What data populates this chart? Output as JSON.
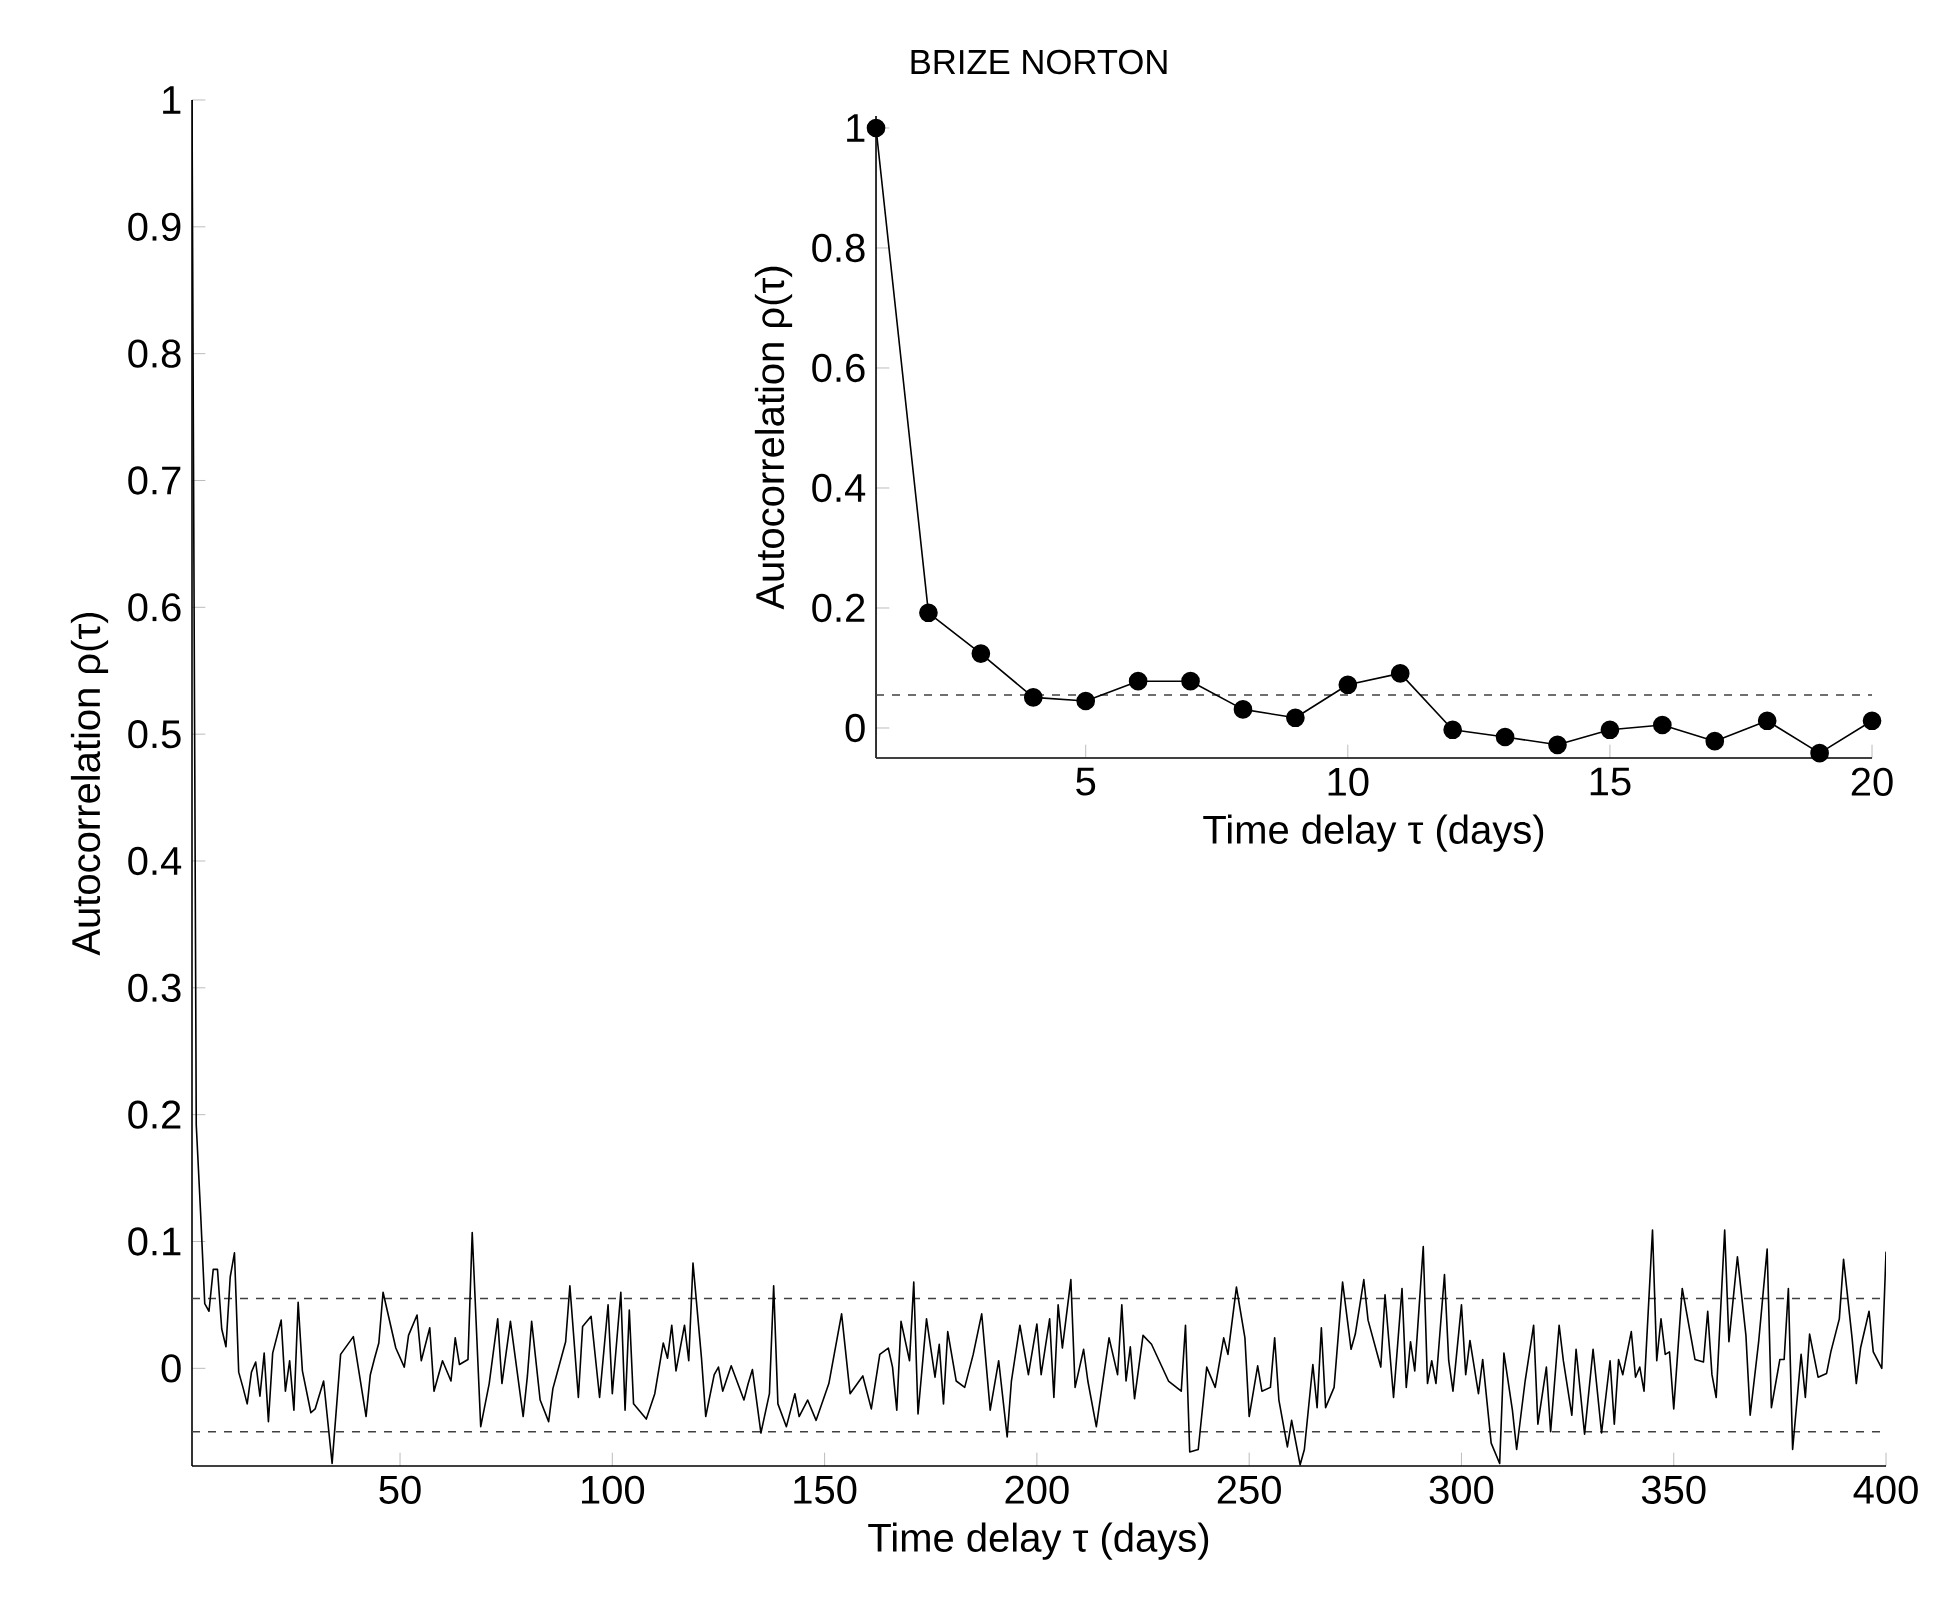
{
  "chart_data": [
    {
      "type": "line",
      "title": "BRIZE NORTON",
      "xlabel": "Time delay τ (days)",
      "ylabel": "Autocorrelation ρ(τ)",
      "color": "#000000",
      "marker": "none",
      "line_style": "solid",
      "xlim": [
        1,
        400
      ],
      "xticks": [
        50,
        100,
        150,
        200,
        250,
        300,
        350,
        400
      ],
      "ylim": [
        -0.077,
        1
      ],
      "yticks": [
        0,
        0.1,
        0.2,
        0.3,
        0.4,
        0.5,
        0.6,
        0.7,
        0.8,
        0.9,
        1
      ],
      "ref_lines": [
        {
          "axis": "y",
          "value": 0.055,
          "color": "#404040",
          "line_style": "dashed"
        },
        {
          "axis": "y",
          "value": -0.05,
          "color": "#404040",
          "line_style": "dashed"
        }
      ],
      "x": [
        1,
        2,
        3,
        4,
        5,
        6,
        7,
        8,
        9,
        10,
        11,
        12,
        13,
        14,
        15,
        16,
        17,
        18,
        19,
        20,
        22,
        23,
        24,
        25,
        26,
        27,
        29,
        30,
        32,
        34,
        36,
        39,
        42,
        43,
        44,
        45,
        46,
        49,
        51,
        52,
        54,
        55,
        57,
        58,
        60,
        62,
        63,
        64,
        66,
        67,
        69,
        71,
        73,
        74,
        76,
        79,
        80,
        81,
        83,
        85,
        86,
        89,
        90,
        92,
        93,
        95,
        97,
        99,
        100,
        102,
        103,
        104,
        105,
        108,
        110,
        112,
        113,
        114,
        115,
        117,
        118,
        119,
        121,
        122,
        124,
        125,
        126,
        128,
        131,
        132,
        133,
        135,
        137,
        138,
        139,
        141,
        143,
        144,
        146,
        148,
        151,
        154,
        156,
        159,
        161,
        163,
        165,
        166,
        167,
        168,
        170,
        171,
        172,
        174,
        176,
        177,
        178,
        179,
        181,
        183,
        185,
        187,
        189,
        191,
        193,
        194,
        196,
        198,
        200,
        201,
        203,
        204,
        205,
        206,
        208,
        209,
        211,
        212,
        214,
        217,
        219,
        220,
        221,
        222,
        223,
        225,
        227,
        231,
        234,
        235,
        236,
        238,
        240,
        242,
        244,
        245,
        247,
        249,
        250,
        252,
        253,
        255,
        256,
        257,
        259,
        260,
        262,
        263,
        265,
        266,
        267,
        268,
        270,
        272,
        274,
        275,
        277,
        278,
        281,
        282,
        284,
        286,
        287,
        288,
        289,
        291,
        292,
        293,
        294,
        296,
        297,
        298,
        300,
        301,
        302,
        304,
        305,
        307,
        309,
        310,
        312,
        313,
        315,
        317,
        318,
        320,
        321,
        323,
        324,
        326,
        327,
        329,
        331,
        333,
        335,
        336,
        337,
        338,
        340,
        341,
        342,
        343,
        345,
        346,
        347,
        348,
        349,
        350,
        352,
        355,
        357,
        358,
        359,
        360,
        362,
        363,
        365,
        367,
        368,
        370,
        372,
        373,
        375,
        376,
        377,
        378,
        380,
        381,
        382,
        384,
        386,
        387,
        389,
        390,
        392,
        393,
        394,
        396,
        397,
        399,
        400
      ],
      "values": [
        1.0,
        0.192,
        0.124,
        0.051,
        0.045,
        0.078,
        0.078,
        0.031,
        0.017,
        0.072,
        0.091,
        -0.003,
        -0.015,
        -0.028,
        -0.003,
        0.005,
        -0.022,
        0.012,
        -0.042,
        0.012,
        0.038,
        -0.018,
        0.006,
        -0.033,
        0.052,
        -0.002,
        -0.035,
        -0.032,
        -0.01,
        -0.075,
        0.011,
        0.025,
        -0.038,
        -0.005,
        0.008,
        0.02,
        0.06,
        0.016,
        0.001,
        0.026,
        0.042,
        0.006,
        0.032,
        -0.018,
        0.006,
        -0.01,
        0.024,
        0.003,
        0.007,
        0.107,
        -0.046,
        -0.012,
        0.039,
        -0.012,
        0.037,
        -0.038,
        -0.006,
        0.037,
        -0.025,
        -0.042,
        -0.016,
        0.021,
        0.065,
        -0.023,
        0.033,
        0.041,
        -0.023,
        0.05,
        -0.02,
        0.06,
        -0.033,
        0.046,
        -0.028,
        -0.04,
        -0.02,
        0.02,
        0.008,
        0.034,
        -0.002,
        0.034,
        0.006,
        0.083,
        0.008,
        -0.038,
        -0.005,
        0.001,
        -0.018,
        0.002,
        -0.025,
        -0.012,
        -0.001,
        -0.051,
        -0.02,
        0.065,
        -0.028,
        -0.046,
        -0.02,
        -0.038,
        -0.025,
        -0.041,
        -0.012,
        0.043,
        -0.02,
        -0.006,
        -0.032,
        0.011,
        0.016,
        0.001,
        -0.033,
        0.037,
        0.006,
        0.068,
        -0.036,
        0.039,
        -0.007,
        0.019,
        -0.028,
        0.029,
        -0.01,
        -0.015,
        0.011,
        0.043,
        -0.033,
        0.006,
        -0.054,
        -0.01,
        0.034,
        -0.005,
        0.035,
        -0.005,
        0.039,
        -0.023,
        0.05,
        0.016,
        0.07,
        -0.015,
        0.015,
        -0.01,
        -0.046,
        0.024,
        -0.005,
        0.05,
        -0.01,
        0.017,
        -0.024,
        0.026,
        0.019,
        -0.01,
        -0.018,
        0.034,
        -0.066,
        -0.064,
        0.001,
        -0.015,
        0.024,
        0.011,
        0.064,
        0.024,
        -0.038,
        0.002,
        -0.018,
        -0.015,
        0.024,
        -0.025,
        -0.062,
        -0.041,
        -0.076,
        -0.064,
        0.003,
        -0.031,
        0.032,
        -0.031,
        -0.015,
        0.068,
        0.015,
        0.027,
        0.07,
        0.038,
        0.001,
        0.058,
        -0.023,
        0.063,
        -0.015,
        0.021,
        -0.002,
        0.096,
        -0.012,
        0.006,
        -0.012,
        0.074,
        0.006,
        -0.018,
        0.05,
        -0.005,
        0.022,
        -0.02,
        0.007,
        -0.059,
        -0.075,
        0.012,
        -0.033,
        -0.064,
        -0.01,
        0.034,
        -0.044,
        0.001,
        -0.05,
        0.034,
        0.006,
        -0.037,
        0.015,
        -0.052,
        0.015,
        -0.051,
        0.006,
        -0.044,
        0.007,
        -0.005,
        0.029,
        -0.007,
        0.001,
        -0.018,
        0.109,
        0.006,
        0.039,
        0.011,
        0.013,
        -0.032,
        0.063,
        0.007,
        0.005,
        0.045,
        -0.005,
        -0.023,
        0.109,
        0.021,
        0.088,
        0.026,
        -0.037,
        0.021,
        0.094,
        -0.031,
        0.007,
        0.007,
        0.063,
        -0.064,
        0.011,
        -0.023,
        0.027,
        -0.007,
        -0.004,
        0.013,
        0.039,
        0.086,
        0.024,
        -0.012,
        0.016,
        0.045,
        0.013,
        0.0,
        0.092
      ]
    },
    {
      "type": "line",
      "xlabel": "Time delay τ (days)",
      "ylabel": "Autocorrelation ρ(τ)",
      "color": "#000000",
      "marker": "circle",
      "line_style": "solid",
      "xlim": [
        1,
        20
      ],
      "xticks": [
        5,
        10,
        15,
        20
      ],
      "ylim": [
        -0.05,
        1.02
      ],
      "yticks": [
        0,
        0.2,
        0.4,
        0.6,
        0.8,
        1
      ],
      "ref_lines": [
        {
          "axis": "y",
          "value": 0.055,
          "color": "#404040",
          "line_style": "dashed"
        },
        {
          "axis": "y",
          "value": -0.05,
          "color": "#404040",
          "line_style": "dashed"
        }
      ],
      "x": [
        1,
        2,
        3,
        4,
        5,
        6,
        7,
        8,
        9,
        10,
        11,
        12,
        13,
        14,
        15,
        16,
        17,
        18,
        19,
        20
      ],
      "values": [
        1.0,
        0.192,
        0.124,
        0.051,
        0.045,
        0.078,
        0.078,
        0.031,
        0.017,
        0.072,
        0.091,
        -0.003,
        -0.015,
        -0.028,
        -0.003,
        0.005,
        -0.022,
        0.012,
        -0.042,
        0.012
      ]
    }
  ]
}
